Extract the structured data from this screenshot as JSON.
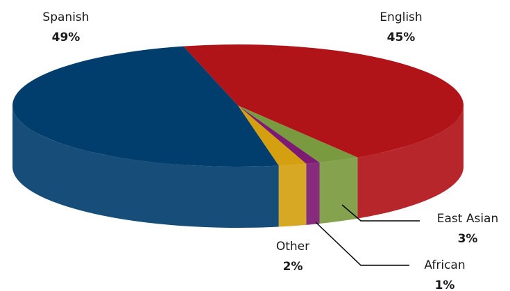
{
  "chart_data": {
    "type": "pie",
    "series": [
      {
        "name": "English",
        "color": "#b01318",
        "values": [
          45
        ],
        "value_labels": [
          "45%"
        ]
      },
      {
        "name": "East Asian",
        "color": "#7a9a3f",
        "values": [
          3
        ],
        "value_labels": [
          "3%"
        ]
      },
      {
        "name": "African",
        "color": "#7d1a72",
        "values": [
          1
        ],
        "value_labels": [
          "1%"
        ]
      },
      {
        "name": "Other",
        "color": "#d4a010",
        "values": [
          2
        ],
        "value_labels": [
          "2%"
        ]
      },
      {
        "name": "Spanish",
        "color": "#023e6d",
        "values": [
          49
        ],
        "value_labels": [
          "49%"
        ]
      }
    ]
  }
}
